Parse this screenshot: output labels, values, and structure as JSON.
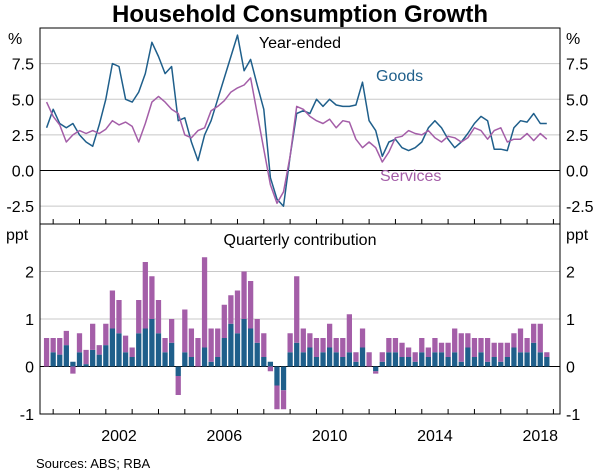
{
  "title": "Household Consumption Growth",
  "source": "Sources: ABS; RBA",
  "colors": {
    "goods": "#1f5f8b",
    "services": "#a45ea8",
    "grid": "#c8c8c8"
  },
  "chart_data": [
    {
      "type": "line",
      "panel_title": "Year-ended",
      "unit_label": "%",
      "ylim": [
        -3.75,
        10
      ],
      "yticks": [
        "7.5",
        "5.0",
        "2.5",
        "0.0",
        "-2.5"
      ],
      "ytick_values": [
        7.5,
        5.0,
        2.5,
        0.0,
        -2.5
      ],
      "x_start": 1999.75,
      "x_step": 0.25,
      "grid": true,
      "series": [
        {
          "name": "Goods",
          "color": "#1f5f8b",
          "values": [
            3.0,
            4.3,
            3.3,
            3.0,
            3.3,
            2.5,
            2.0,
            1.7,
            3.2,
            5.0,
            7.5,
            7.3,
            5.0,
            4.8,
            5.5,
            6.8,
            9.0,
            8.0,
            6.8,
            7.3,
            3.5,
            3.7,
            2.0,
            0.7,
            2.5,
            3.5,
            5.0,
            6.5,
            8.0,
            9.5,
            7.0,
            7.8,
            6.0,
            4.3,
            -0.5,
            -2.0,
            -2.5,
            1.0,
            4.0,
            4.2,
            4.0,
            5.0,
            4.5,
            5.0,
            4.6,
            4.5,
            4.5,
            4.6,
            6.2,
            3.5,
            2.8,
            1.0,
            2.0,
            2.2,
            1.6,
            1.4,
            1.6,
            2.0,
            3.0,
            3.5,
            3.0,
            2.2,
            1.6,
            2.0,
            2.6,
            3.3,
            3.8,
            3.5,
            1.5,
            1.5,
            1.4,
            3.0,
            3.5,
            3.4,
            4.0,
            3.3,
            3.3
          ]
        },
        {
          "name": "Services",
          "color": "#a45ea8",
          "values": [
            4.8,
            3.8,
            3.2,
            2.0,
            2.5,
            2.8,
            2.6,
            2.8,
            2.6,
            2.9,
            3.5,
            3.2,
            3.4,
            3.1,
            2.0,
            3.3,
            4.8,
            5.2,
            4.8,
            4.3,
            4.0,
            2.5,
            2.3,
            2.8,
            3.0,
            4.2,
            4.5,
            4.9,
            5.5,
            5.8,
            6.0,
            6.5,
            4.0,
            1.5,
            -1.0,
            -2.3,
            -1.5,
            1.0,
            4.5,
            4.3,
            3.8,
            3.5,
            3.3,
            3.6,
            3.0,
            3.5,
            3.4,
            2.2,
            1.6,
            2.0,
            1.6,
            0.6,
            1.3,
            2.3,
            2.4,
            2.8,
            2.6,
            2.5,
            2.8,
            2.3,
            2.0,
            2.4,
            2.3,
            2.0,
            2.3,
            3.0,
            2.8,
            2.2,
            2.8,
            3.0,
            2.0,
            2.2,
            2.2,
            2.6,
            2.1,
            2.6,
            2.2
          ]
        }
      ],
      "labels": {
        "goods": "Goods",
        "services": "Services"
      }
    },
    {
      "type": "bar",
      "stacked": true,
      "panel_title": "Quarterly contribution",
      "unit_label": "ppt",
      "ylim": [
        -1,
        3
      ],
      "yticks": [
        "2",
        "1",
        "0",
        "-1"
      ],
      "ytick_values": [
        2,
        1,
        0,
        -1
      ],
      "x_start": 1999.75,
      "x_step": 0.25,
      "grid": true,
      "xticks": [
        "2002",
        "2006",
        "2010",
        "2014",
        "2018"
      ],
      "xtick_values": [
        2002,
        2006,
        2010,
        2014,
        2018
      ],
      "series": [
        {
          "name": "Goods",
          "color": "#1f5f8b",
          "values": [
            0.0,
            0.3,
            0.25,
            0.45,
            0.1,
            0.3,
            0.05,
            0.35,
            0.25,
            0.45,
            0.8,
            0.7,
            0.3,
            0.2,
            0.7,
            0.8,
            1.0,
            0.7,
            0.3,
            0.5,
            -0.2,
            0.3,
            0.2,
            0.0,
            0.4,
            0.1,
            0.2,
            0.6,
            0.9,
            0.7,
            1.0,
            0.8,
            0.5,
            0.2,
            0.1,
            -0.4,
            -0.5,
            0.3,
            0.5,
            0.3,
            0.4,
            0.2,
            0.3,
            0.4,
            0.3,
            0.2,
            0.3,
            0.1,
            0.4,
            0.0,
            -0.1,
            0.1,
            0.3,
            0.3,
            0.2,
            0.2,
            0.1,
            0.3,
            0.2,
            0.3,
            0.3,
            0.2,
            0.3,
            0.1,
            0.4,
            0.2,
            0.3,
            0.1,
            0.2,
            0.1,
            0.2,
            0.4,
            0.3,
            0.3,
            0.5,
            0.3,
            0.2
          ]
        },
        {
          "name": "Services",
          "color": "#a45ea8",
          "values": [
            0.6,
            0.3,
            0.35,
            0.3,
            -0.15,
            0.4,
            0.3,
            0.55,
            0.2,
            0.45,
            0.8,
            0.7,
            0.35,
            0.2,
            0.7,
            1.4,
            0.9,
            0.7,
            0.3,
            0.5,
            -0.4,
            0.9,
            0.6,
            0.6,
            1.9,
            0.7,
            0.6,
            0.7,
            0.6,
            0.9,
            1.0,
            1.0,
            0.5,
            0.5,
            -0.1,
            -0.5,
            -0.4,
            0.4,
            1.4,
            0.5,
            0.3,
            0.4,
            0.3,
            0.5,
            0.3,
            0.4,
            0.8,
            0.2,
            0.4,
            0.3,
            -0.05,
            0.2,
            0.3,
            0.3,
            0.3,
            0.2,
            0.2,
            0.3,
            0.2,
            0.3,
            0.2,
            0.3,
            0.5,
            0.6,
            0.3,
            0.4,
            0.3,
            0.5,
            0.3,
            0.4,
            0.3,
            0.3,
            0.5,
            0.3,
            0.4,
            0.6,
            0.1
          ]
        }
      ]
    }
  ]
}
